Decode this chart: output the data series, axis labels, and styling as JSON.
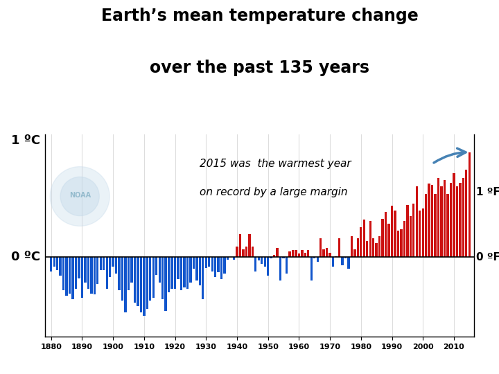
{
  "title_line1": "Earth’s mean temperature change",
  "title_line2": "over the past 135 years",
  "ylabel_left_1": "1 ºC",
  "ylabel_left_0": "0 ºC",
  "ylabel_right_1": "1 ºF",
  "ylabel_right_0": "0 ºF",
  "annotation_line1": "2015 was  the warmest year",
  "annotation_line2": "on record by a large margin",
  "xlim": [
    1878,
    2016.5
  ],
  "ylim": [
    -0.68,
    1.05
  ],
  "bar_width": 0.75,
  "color_warm": "#cc1111",
  "color_cool": "#1155cc",
  "grid_color": "#dddddd",
  "bg_color": "#ffffff",
  "years": [
    1880,
    1881,
    1882,
    1883,
    1884,
    1885,
    1886,
    1887,
    1888,
    1889,
    1890,
    1891,
    1892,
    1893,
    1894,
    1895,
    1896,
    1897,
    1898,
    1899,
    1900,
    1901,
    1902,
    1903,
    1904,
    1905,
    1906,
    1907,
    1908,
    1909,
    1910,
    1911,
    1912,
    1913,
    1914,
    1915,
    1916,
    1917,
    1918,
    1919,
    1920,
    1921,
    1922,
    1923,
    1924,
    1925,
    1926,
    1927,
    1928,
    1929,
    1930,
    1931,
    1932,
    1933,
    1934,
    1935,
    1936,
    1937,
    1938,
    1939,
    1940,
    1941,
    1942,
    1943,
    1944,
    1945,
    1946,
    1947,
    1948,
    1949,
    1950,
    1951,
    1952,
    1953,
    1954,
    1955,
    1956,
    1957,
    1958,
    1959,
    1960,
    1961,
    1962,
    1963,
    1964,
    1965,
    1966,
    1967,
    1968,
    1969,
    1970,
    1971,
    1972,
    1973,
    1974,
    1975,
    1976,
    1977,
    1978,
    1979,
    1980,
    1981,
    1982,
    1983,
    1984,
    1985,
    1986,
    1987,
    1988,
    1989,
    1990,
    1991,
    1992,
    1993,
    1994,
    1995,
    1996,
    1997,
    1998,
    1999,
    2000,
    2001,
    2002,
    2003,
    2004,
    2005,
    2006,
    2007,
    2008,
    2009,
    2010,
    2011,
    2012,
    2013,
    2014,
    2015
  ],
  "anomalies": [
    -0.12,
    -0.08,
    -0.11,
    -0.16,
    -0.28,
    -0.33,
    -0.31,
    -0.36,
    -0.27,
    -0.18,
    -0.35,
    -0.22,
    -0.27,
    -0.31,
    -0.32,
    -0.23,
    -0.11,
    -0.11,
    -0.27,
    -0.17,
    -0.08,
    -0.14,
    -0.28,
    -0.37,
    -0.47,
    -0.28,
    -0.22,
    -0.39,
    -0.42,
    -0.47,
    -0.5,
    -0.44,
    -0.37,
    -0.35,
    -0.15,
    -0.22,
    -0.36,
    -0.46,
    -0.3,
    -0.27,
    -0.27,
    -0.19,
    -0.28,
    -0.26,
    -0.27,
    -0.22,
    -0.1,
    -0.2,
    -0.24,
    -0.36,
    -0.09,
    -0.08,
    -0.12,
    -0.17,
    -0.13,
    -0.19,
    -0.14,
    -0.02,
    -0.0,
    -0.02,
    0.09,
    0.2,
    0.07,
    0.09,
    0.2,
    0.09,
    -0.12,
    -0.03,
    -0.06,
    -0.08,
    -0.16,
    -0.01,
    0.02,
    0.08,
    -0.2,
    -0.01,
    -0.14,
    0.05,
    0.06,
    0.06,
    0.03,
    0.06,
    0.04,
    0.06,
    -0.2,
    -0.01,
    -0.04,
    0.16,
    0.07,
    0.08,
    0.04,
    -0.08,
    0.01,
    0.16,
    -0.07,
    -0.01,
    -0.1,
    0.18,
    0.07,
    0.16,
    0.26,
    0.32,
    0.14,
    0.31,
    0.16,
    0.12,
    0.18,
    0.33,
    0.39,
    0.29,
    0.44,
    0.4,
    0.23,
    0.24,
    0.31,
    0.45,
    0.35,
    0.46,
    0.61,
    0.4,
    0.42,
    0.54,
    0.63,
    0.62,
    0.54,
    0.68,
    0.61,
    0.66,
    0.54,
    0.64,
    0.72,
    0.61,
    0.64,
    0.68,
    0.75,
    0.9
  ]
}
